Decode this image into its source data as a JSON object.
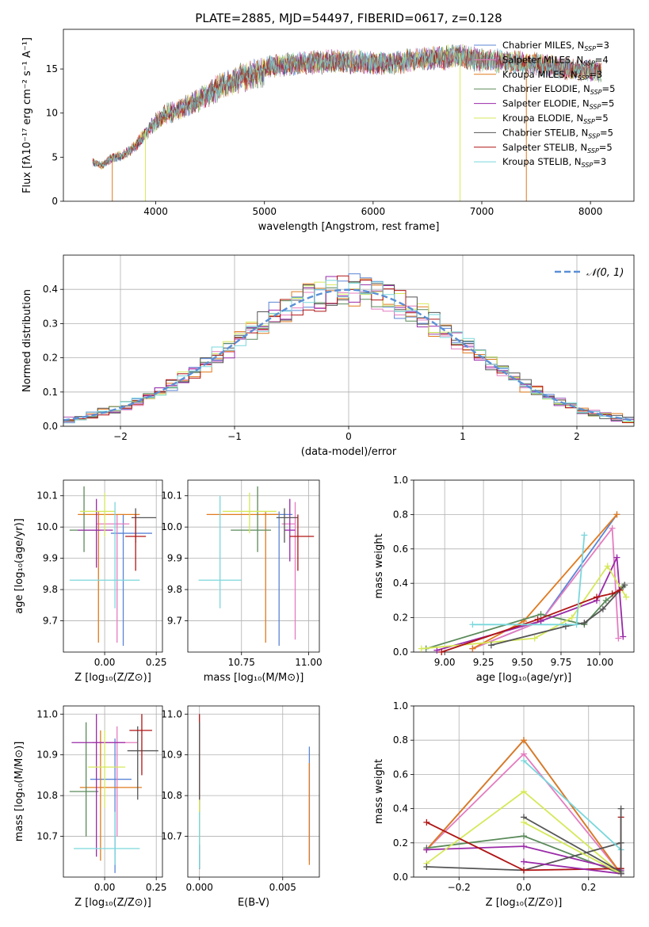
{
  "chart_data": [
    {
      "id": "spectrum",
      "type": "line",
      "title": "PLATE=2885, MJD=54497, FIBERID=0617, z=0.128",
      "xlabel": "wavelength [Angstrom, rest frame]",
      "ylabel": "Flux [fλ10⁻¹⁷ erg cm⁻² s⁻¹ A⁻¹]",
      "xlim": [
        3150,
        8400
      ],
      "ylim": [
        0,
        19.5
      ],
      "xticks": [
        "4000",
        "5000",
        "6000",
        "7000",
        "8000"
      ],
      "yticks": [
        "0",
        "5",
        "10",
        "15"
      ],
      "continuum": {
        "x": [
          3420,
          3500,
          3600,
          3700,
          3800,
          3900,
          4000,
          4100,
          4200,
          4300,
          4400,
          4500,
          4600,
          4700,
          4800,
          4900,
          5000,
          5200,
          5400,
          5600,
          5800,
          6000,
          6200,
          6400,
          6600,
          6800,
          7000,
          7200,
          7400,
          7600,
          7800,
          8000,
          8100
        ],
        "y": [
          4.7,
          4.3,
          5.2,
          5.5,
          6.5,
          8.0,
          9.5,
          10.5,
          11.0,
          11.5,
          12.2,
          13.0,
          13.8,
          14.5,
          15.0,
          15.2,
          15.5,
          15.8,
          16.0,
          16.2,
          16.2,
          16.0,
          16.0,
          16.5,
          16.6,
          16.8,
          16.3,
          16.2,
          16.0,
          15.7,
          15.3,
          15.2,
          15.0
        ]
      },
      "series": [
        {
          "label": "Chabrier MILES, N",
          "sub": "SSP",
          "n": "=3",
          "color": "#5a84d6"
        },
        {
          "label": "Salpeter MILES, N",
          "sub": "SSP",
          "n": "=4",
          "color": "#e47cc0"
        },
        {
          "label": "Kroupa MILES, N",
          "sub": "SSP",
          "n": "=3",
          "color": "#e07a1e"
        },
        {
          "label": "Chabrier ELODIE, N",
          "sub": "SSP",
          "n": "=5",
          "color": "#5a8a5a"
        },
        {
          "label": "Salpeter ELODIE, N",
          "sub": "SSP",
          "n": "=5",
          "color": "#9a2aa8"
        },
        {
          "label": "Kroupa ELODIE, N",
          "sub": "SSP",
          "n": "=5",
          "color": "#d6e85a"
        },
        {
          "label": "Chabrier STELIB, N",
          "sub": "SSP",
          "n": "=5",
          "color": "#555555"
        },
        {
          "label": "Salpeter STELIB, N",
          "sub": "SSP",
          "n": "=5",
          "color": "#b01414"
        },
        {
          "label": "Kroupa STELIB, N",
          "sub": "SSP",
          "n": "=3",
          "color": "#7ad7dc"
        }
      ]
    },
    {
      "id": "residual-hist",
      "type": "histogram",
      "xlabel": "(data-model)/error",
      "ylabel": "Normed distribution",
      "xlim": [
        -2.5,
        2.5
      ],
      "ylim": [
        0,
        0.5
      ],
      "xticks": [
        "−2",
        "−1",
        "0",
        "1",
        "2"
      ],
      "yticks": [
        "0.0",
        "0.1",
        "0.2",
        "0.3",
        "0.4"
      ],
      "legend": "𝒩(0, 1)",
      "legend_color": "#5a8fd6",
      "bin_width": 0.1
    },
    {
      "id": "age-vs-z",
      "type": "errorbar",
      "xlabel": "Z [log₁₀(Z/Z⊙)]",
      "ylabel": "age  [log₁₀(age/yr)]",
      "xlim": [
        -0.2,
        0.28
      ],
      "ylim": [
        9.6,
        10.15
      ],
      "xticks": [
        "0.00",
        "0.25"
      ],
      "yticks": [
        "9.7",
        "9.8",
        "9.9",
        "10.0",
        "10.1"
      ],
      "points": [
        {
          "x": 0.09,
          "xl": 0.06,
          "xh": 0.14,
          "y": 9.98,
          "yl": 9.62,
          "yh": 10.04,
          "color": "#5a84d6"
        },
        {
          "x": 0.06,
          "xl": 0.1,
          "xh": 0.06,
          "y": 10.01,
          "yl": 9.63,
          "yh": 10.04,
          "color": "#e47cc0"
        },
        {
          "x": -0.03,
          "xl": 0.1,
          "xh": 0.2,
          "y": 10.04,
          "yl": 9.63,
          "yh": 10.05,
          "color": "#e07a1e"
        },
        {
          "x": -0.1,
          "xl": 0.07,
          "xh": 0.08,
          "y": 9.99,
          "yl": 9.92,
          "yh": 10.13,
          "color": "#5a8a5a"
        },
        {
          "x": -0.04,
          "xl": 0.09,
          "xh": 0.08,
          "y": 9.99,
          "yl": 9.87,
          "yh": 10.09,
          "color": "#9a2aa8"
        },
        {
          "x": 0.0,
          "xl": 0.12,
          "xh": 0.05,
          "y": 10.05,
          "yl": 9.97,
          "yh": 10.11,
          "color": "#d6e85a"
        },
        {
          "x": 0.15,
          "xl": 0.02,
          "xh": 0.1,
          "y": 10.03,
          "yl": 9.95,
          "yh": 10.06,
          "color": "#555555"
        },
        {
          "x": 0.15,
          "xl": 0.05,
          "xh": 0.05,
          "y": 9.97,
          "yl": 9.86,
          "yh": 10.04,
          "color": "#b01414"
        },
        {
          "x": 0.05,
          "xl": 0.22,
          "xh": 0.12,
          "y": 9.83,
          "yl": 9.74,
          "yh": 10.08,
          "color": "#7ad7dc"
        }
      ]
    },
    {
      "id": "age-vs-mass",
      "type": "errorbar",
      "xlabel": "mass [log₁₀(M/M⊙)]",
      "xlim": [
        10.55,
        11.04
      ],
      "ylim": [
        9.6,
        10.15
      ],
      "xticks": [
        "10.75",
        "11.00"
      ],
      "yticks": [
        "9.7",
        "9.8",
        "9.9",
        "10.0",
        "10.1"
      ],
      "points": [
        {
          "x": 10.89,
          "xl": 0.06,
          "xh": 0.05,
          "y": 10.04,
          "yl": 9.62,
          "yh": 10.05,
          "color": "#5a84d6"
        },
        {
          "x": 10.95,
          "xl": 0.05,
          "xh": 0.0,
          "y": 10.01,
          "yl": 9.64,
          "yh": 10.08,
          "color": "#e47cc0"
        },
        {
          "x": 10.84,
          "xl": 0.22,
          "xh": 0.05,
          "y": 10.04,
          "yl": 9.63,
          "yh": 10.05,
          "color": "#e07a1e"
        },
        {
          "x": 10.81,
          "xl": 0.1,
          "xh": 0.05,
          "y": 9.99,
          "yl": 9.92,
          "yh": 10.13,
          "color": "#5a8a5a"
        },
        {
          "x": 10.93,
          "xl": 0.02,
          "xh": 0.02,
          "y": 9.99,
          "yl": 9.89,
          "yh": 10.09,
          "color": "#9a2aa8"
        },
        {
          "x": 10.78,
          "xl": 0.1,
          "xh": 0.1,
          "y": 10.05,
          "yl": 9.98,
          "yh": 10.11,
          "color": "#d6e85a"
        },
        {
          "x": 10.91,
          "xl": 0.03,
          "xh": 0.05,
          "y": 10.03,
          "yl": 9.95,
          "yh": 10.06,
          "color": "#555555"
        },
        {
          "x": 10.96,
          "xl": 0.03,
          "xh": 0.06,
          "y": 9.97,
          "yl": 9.86,
          "yh": 10.04,
          "color": "#b01414"
        },
        {
          "x": 10.67,
          "xl": 0.08,
          "xh": 0.08,
          "y": 9.83,
          "yl": 9.74,
          "yh": 10.1,
          "color": "#7ad7dc"
        }
      ]
    },
    {
      "id": "mass-weight-vs-age",
      "type": "line",
      "xlabel": "age  [log₁₀(age/yr)]",
      "ylabel": "mass weight",
      "xlim": [
        8.8,
        10.22
      ],
      "ylim": [
        0,
        1
      ],
      "xticks": [
        "9.00",
        "9.25",
        "9.50",
        "9.75",
        "10.00"
      ],
      "yticks": [
        "0.0",
        "0.2",
        "0.4",
        "0.6",
        "0.8",
        "1.0"
      ],
      "series": [
        {
          "color": "#5a84d6",
          "x": [
            9.18,
            9.62,
            10.11
          ],
          "y": [
            0.02,
            0.18,
            0.8
          ]
        },
        {
          "color": "#e47cc0",
          "x": [
            9.18,
            9.62,
            10.08,
            10.12
          ],
          "y": [
            0.02,
            0.18,
            0.72,
            0.08
          ]
        },
        {
          "color": "#e07a1e",
          "x": [
            9.18,
            9.51,
            10.11
          ],
          "y": [
            0.02,
            0.18,
            0.8
          ]
        },
        {
          "color": "#5a8a5a",
          "x": [
            8.88,
            9.62,
            9.9,
            10.04,
            10.15
          ],
          "y": [
            0.02,
            0.22,
            0.16,
            0.3,
            0.38
          ]
        },
        {
          "color": "#9a2aa8",
          "x": [
            8.95,
            9.62,
            9.98,
            10.11,
            10.15
          ],
          "y": [
            0.01,
            0.18,
            0.3,
            0.55,
            0.09
          ]
        },
        {
          "color": "#d6e85a",
          "x": [
            8.85,
            9.58,
            9.82,
            10.05,
            10.17
          ],
          "y": [
            0.02,
            0.08,
            0.2,
            0.5,
            0.32
          ]
        },
        {
          "color": "#555555",
          "x": [
            9.3,
            9.78,
            9.9,
            10.02,
            10.16
          ],
          "y": [
            0.04,
            0.15,
            0.17,
            0.25,
            0.39
          ]
        },
        {
          "color": "#b01414",
          "x": [
            8.98,
            9.6,
            9.98,
            10.08,
            10.13
          ],
          "y": [
            0.0,
            0.19,
            0.32,
            0.34,
            0.36
          ]
        },
        {
          "color": "#7ad7dc",
          "x": [
            9.18,
            9.85,
            9.9
          ],
          "y": [
            0.16,
            0.16,
            0.68
          ]
        }
      ]
    },
    {
      "id": "mass-vs-z",
      "type": "errorbar",
      "xlabel": "Z [log₁₀(Z/Z⊙)]",
      "ylabel": "mass [log₁₀(M/M⊙)]",
      "xlim": [
        -0.2,
        0.28
      ],
      "ylim": [
        10.6,
        11.02
      ],
      "xticks": [
        "0.00",
        "0.25"
      ],
      "yticks": [
        "10.7",
        "10.8",
        "10.9",
        "11.0"
      ],
      "points": [
        {
          "x": 0.05,
          "xl": 0.12,
          "xh": 0.08,
          "y": 10.84,
          "yl": 10.61,
          "yh": 10.94,
          "color": "#5a84d6"
        },
        {
          "x": 0.06,
          "xl": 0.12,
          "xh": 0.1,
          "y": 10.93,
          "yl": 10.7,
          "yh": 10.97,
          "color": "#e47cc0"
        },
        {
          "x": -0.02,
          "xl": 0.1,
          "xh": 0.2,
          "y": 10.82,
          "yl": 10.64,
          "yh": 10.96,
          "color": "#e07a1e"
        },
        {
          "x": -0.09,
          "xl": 0.08,
          "xh": 0.06,
          "y": 10.81,
          "yl": 10.7,
          "yh": 10.98,
          "color": "#5a8a5a"
        },
        {
          "x": -0.04,
          "xl": 0.12,
          "xh": 0.14,
          "y": 10.93,
          "yl": 10.65,
          "yh": 11.0,
          "color": "#9a2aa8"
        },
        {
          "x": 0.0,
          "xl": 0.08,
          "xh": 0.1,
          "y": 10.87,
          "yl": 10.77,
          "yh": 10.96,
          "color": "#d6e85a"
        },
        {
          "x": 0.16,
          "xl": 0.05,
          "xh": 0.1,
          "y": 10.91,
          "yl": 10.79,
          "yh": 10.97,
          "color": "#555555"
        },
        {
          "x": 0.18,
          "xl": 0.06,
          "xh": 0.05,
          "y": 10.96,
          "yl": 10.85,
          "yh": 11.0,
          "color": "#b01414"
        },
        {
          "x": 0.05,
          "xl": 0.2,
          "xh": 0.12,
          "y": 10.67,
          "yl": 10.63,
          "yh": 10.76,
          "color": "#7ad7dc"
        }
      ]
    },
    {
      "id": "mass-vs-ebv",
      "type": "errorbar",
      "xlabel": "E(B-V)",
      "xlim": [
        -0.0007,
        0.0072
      ],
      "ylim": [
        10.6,
        11.02
      ],
      "xticks": [
        "0.000",
        "0.005"
      ],
      "yticks": [
        "10.7",
        "10.8",
        "10.9",
        "11.0"
      ],
      "points": [
        {
          "x": 0.0,
          "xl": 0,
          "xh": 0,
          "y": 10.85,
          "yl": 10.62,
          "yh": 11.0,
          "color": "#b01414"
        },
        {
          "x": 0.0,
          "xl": 0,
          "xh": 0,
          "y": 10.8,
          "yl": 10.62,
          "yh": 10.98,
          "color": "#555555"
        },
        {
          "x": 0.0,
          "xl": 0,
          "xh": 0,
          "y": 10.8,
          "yl": 10.68,
          "yh": 10.79,
          "color": "#d6e85a"
        },
        {
          "x": 0.0,
          "xl": 0,
          "xh": 0,
          "y": 10.7,
          "yl": 10.62,
          "yh": 10.76,
          "color": "#7ad7dc"
        },
        {
          "x": 0.0066,
          "xl": 0,
          "xh": 0,
          "y": 10.8,
          "yl": 10.64,
          "yh": 10.92,
          "color": "#5a84d6"
        },
        {
          "x": 0.0066,
          "xl": 0,
          "xh": 0,
          "y": 10.78,
          "yl": 10.63,
          "yh": 10.88,
          "color": "#e07a1e"
        }
      ]
    },
    {
      "id": "mass-weight-vs-z",
      "type": "line",
      "xlabel": "Z [log₁₀(Z/Z⊙)]",
      "ylabel": "mass weight",
      "xlim": [
        -0.34,
        0.34
      ],
      "ylim": [
        0,
        1
      ],
      "xticks": [
        "−0.2",
        "0.0",
        "0.2"
      ],
      "yticks": [
        "0.0",
        "0.2",
        "0.4",
        "0.6",
        "0.8",
        "1.0"
      ],
      "series": [
        {
          "color": "#5a84d6",
          "x": [
            -0.3,
            0.0,
            0.3
          ],
          "y": [
            0.16,
            0.8,
            0.02
          ]
        },
        {
          "color": "#e47cc0",
          "x": [
            -0.3,
            0.0,
            0.3
          ],
          "y": [
            0.16,
            0.72,
            0.02
          ]
        },
        {
          "color": "#e07a1e",
          "x": [
            -0.3,
            0.0,
            0.3
          ],
          "y": [
            0.16,
            0.8,
            0.02
          ]
        },
        {
          "color": "#5a8a5a",
          "x": [
            -0.3,
            0.0,
            0.3
          ],
          "y": [
            0.17,
            0.24,
            0.02
          ]
        },
        {
          "color": "#9a2aa8",
          "x": [
            -0.3,
            0.0,
            0.3
          ],
          "y": [
            0.16,
            0.18,
            0.04
          ]
        },
        {
          "color": "#d6e85a",
          "x": [
            -0.3,
            0.0,
            0.3
          ],
          "y": [
            0.08,
            0.5,
            0.02
          ]
        },
        {
          "color": "#555555",
          "x": [
            -0.3,
            0.0,
            0.3
          ],
          "y": [
            0.06,
            0.04,
            0.2
          ]
        },
        {
          "color": "#b01414",
          "x": [
            -0.3,
            0.0,
            0.3
          ],
          "y": [
            0.32,
            0.04,
            0.05
          ]
        },
        {
          "color": "#7ad7dc",
          "x": [
            0.0,
            0.3
          ],
          "y": [
            0.68,
            0.16
          ]
        },
        {
          "color": "#555555",
          "x": [
            0.0,
            0.3
          ],
          "y": [
            0.35,
            0.03
          ]
        },
        {
          "color": "#d6e85a",
          "x": [
            0.0,
            0.3
          ],
          "y": [
            0.32,
            0.02
          ]
        },
        {
          "color": "#9a2aa8",
          "x": [
            0.0,
            0.3
          ],
          "y": [
            0.09,
            0.02
          ]
        },
        {
          "color": "#b01414",
          "x": [
            0.3,
            0.3
          ],
          "y": [
            0.05,
            0.35
          ]
        },
        {
          "color": "#555555",
          "x": [
            0.3,
            0.3
          ],
          "y": [
            0.02,
            0.4
          ]
        }
      ]
    }
  ]
}
